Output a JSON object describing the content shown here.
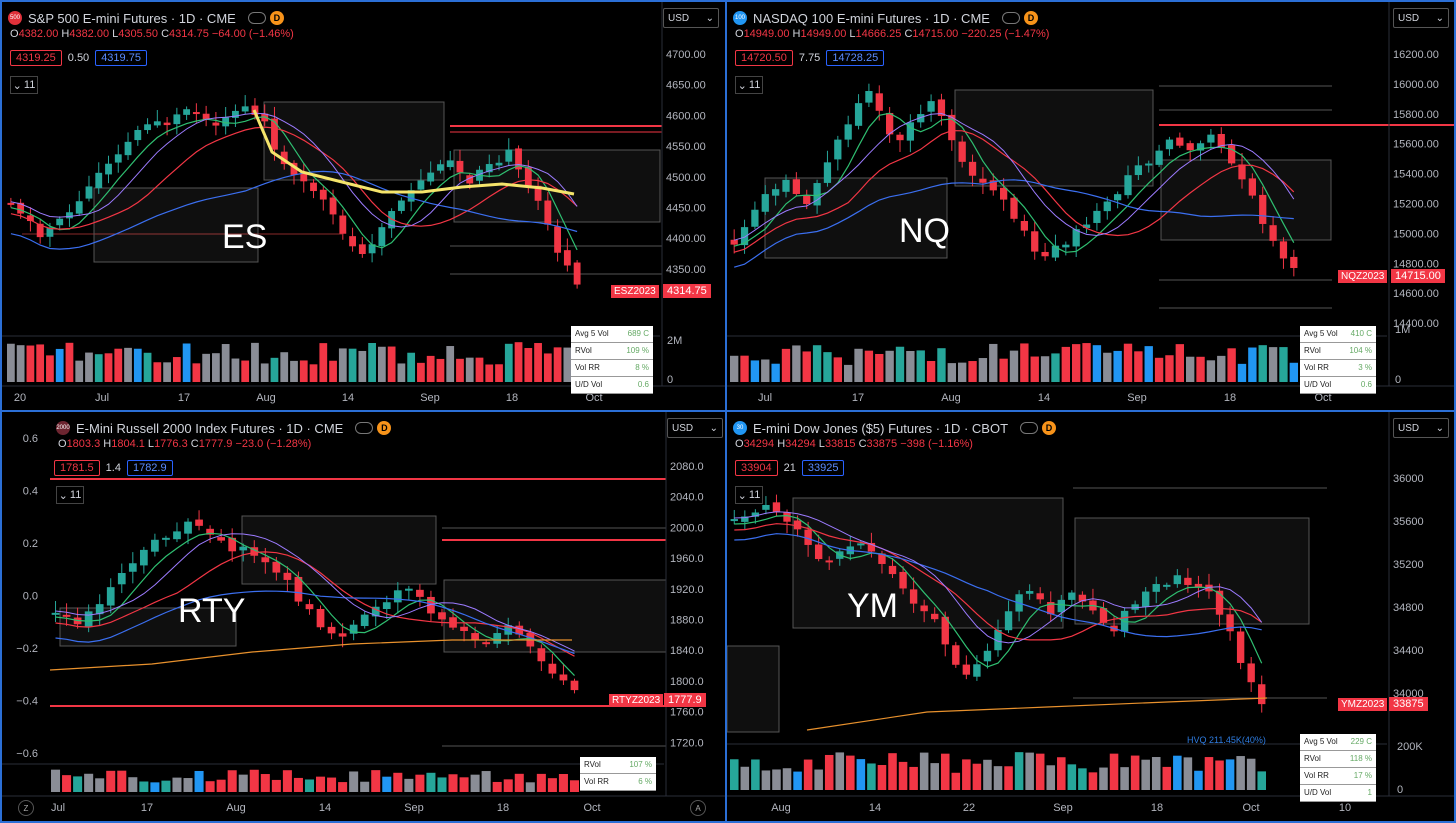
{
  "panels": [
    {
      "id": "es",
      "title": "S&P 500 E-mini Futures · 1D · CME",
      "badge": "500",
      "ohlc": {
        "O": "4382.00",
        "H": "4382.00",
        "L": "4305.50",
        "C": "4314.75",
        "chg": "−64.00 (−1.46%)"
      },
      "bid": "4319.25",
      "spread": "0.50",
      "ask": "4319.75",
      "interval": "11",
      "tag": "ES",
      "ticker": "ESZ2023",
      "last": "4314.75",
      "yaxis": [
        "4700.00",
        "4650.00",
        "4600.00",
        "4550.00",
        "4500.00",
        "4450.00",
        "4400.00",
        "4350.00"
      ],
      "vol_axis": [
        "2M",
        "0"
      ],
      "xaxis": [
        "20",
        "Jul",
        "17",
        "Aug",
        "14",
        "Sep",
        "18",
        "Oct"
      ],
      "stats": [
        [
          "Avg 5 Vol",
          "689 C"
        ],
        [
          "RVol",
          "109 %"
        ],
        [
          "Vol RR",
          "8 %"
        ],
        [
          "U/D Vol",
          "0.6"
        ]
      ]
    },
    {
      "id": "nq",
      "title": "NASDAQ 100 E-mini Futures · 1D · CME",
      "badge": "100",
      "ohlc": {
        "O": "14949.00",
        "H": "14949.00",
        "L": "14666.25",
        "C": "14715.00",
        "chg": "−220.25 (−1.47%)"
      },
      "bid": "14720.50",
      "spread": "7.75",
      "ask": "14728.25",
      "interval": "11",
      "tag": "NQ",
      "ticker": "NQZ2023",
      "last": "14715.00",
      "yaxis": [
        "16200.00",
        "16000.00",
        "15800.00",
        "15600.00",
        "15400.00",
        "15200.00",
        "15000.00",
        "14800.00",
        "14600.00",
        "14400.00"
      ],
      "vol_axis": [
        "1M",
        "0"
      ],
      "xaxis": [
        "Jul",
        "17",
        "Aug",
        "14",
        "Sep",
        "18",
        "Oct"
      ],
      "stats": [
        [
          "Avg 5 Vol",
          "410 C"
        ],
        [
          "RVol",
          "104 %"
        ],
        [
          "Vol RR",
          "3 %"
        ],
        [
          "U/D Vol",
          "0.6"
        ]
      ]
    },
    {
      "id": "rty",
      "title": "E-Mini Russell 2000 Index Futures · 1D · CME",
      "badge": "2000",
      "ohlc": {
        "O": "1803.3",
        "H": "1804.1",
        "L": "1776.3",
        "C": "1777.9",
        "chg": "−23.0 (−1.28%)"
      },
      "bid": "1781.5",
      "spread": "1.4",
      "ask": "1782.9",
      "interval": "11",
      "tag": "RTY",
      "ticker": "RTYZ2023",
      "last": "1777.9",
      "yaxis": [
        "2080.0",
        "2040.0",
        "2000.0",
        "1960.0",
        "1920.0",
        "1880.0",
        "1840.0",
        "1800.0",
        "1760.0",
        "1720.0"
      ],
      "left_axis": [
        "0.6",
        "0.4",
        "0.2",
        "0.0",
        "−0.2",
        "−0.4",
        "−0.6"
      ],
      "xaxis": [
        "Jul",
        "17",
        "Aug",
        "14",
        "Sep",
        "18",
        "Oct"
      ],
      "stats": [
        [
          "RVol",
          "107 %"
        ],
        [
          "Vol RR",
          "6 %"
        ]
      ]
    },
    {
      "id": "ym",
      "title": "E-mini Dow Jones ($5) Futures · 1D · CBOT",
      "badge": "30",
      "ohlc": {
        "O": "34294",
        "H": "34294",
        "L": "33815",
        "C": "33875",
        "chg": "−398 (−1.16%)"
      },
      "bid": "33904",
      "spread": "21",
      "ask": "33925",
      "interval": "11",
      "tag": "YM",
      "ticker": "YMZ2023",
      "last": "33875",
      "yaxis": [
        "36000",
        "35600",
        "35200",
        "34800",
        "34400",
        "34000"
      ],
      "vol_axis": [
        "200K",
        "0"
      ],
      "hvq": "HVQ 211.45K(40%)",
      "xaxis": [
        "Aug",
        "14",
        "22",
        "Sep",
        "18",
        "Oct",
        "10"
      ],
      "stats": [
        [
          "Avg 5 Vol",
          "229 C"
        ],
        [
          "RVol",
          "118 %"
        ],
        [
          "Vol RR",
          "17 %"
        ],
        [
          "U/D Vol",
          "1"
        ]
      ]
    }
  ],
  "currency": "USD",
  "colors": {
    "up": "#26a69a",
    "down": "#f23645",
    "frame": "#2b6fd6"
  }
}
